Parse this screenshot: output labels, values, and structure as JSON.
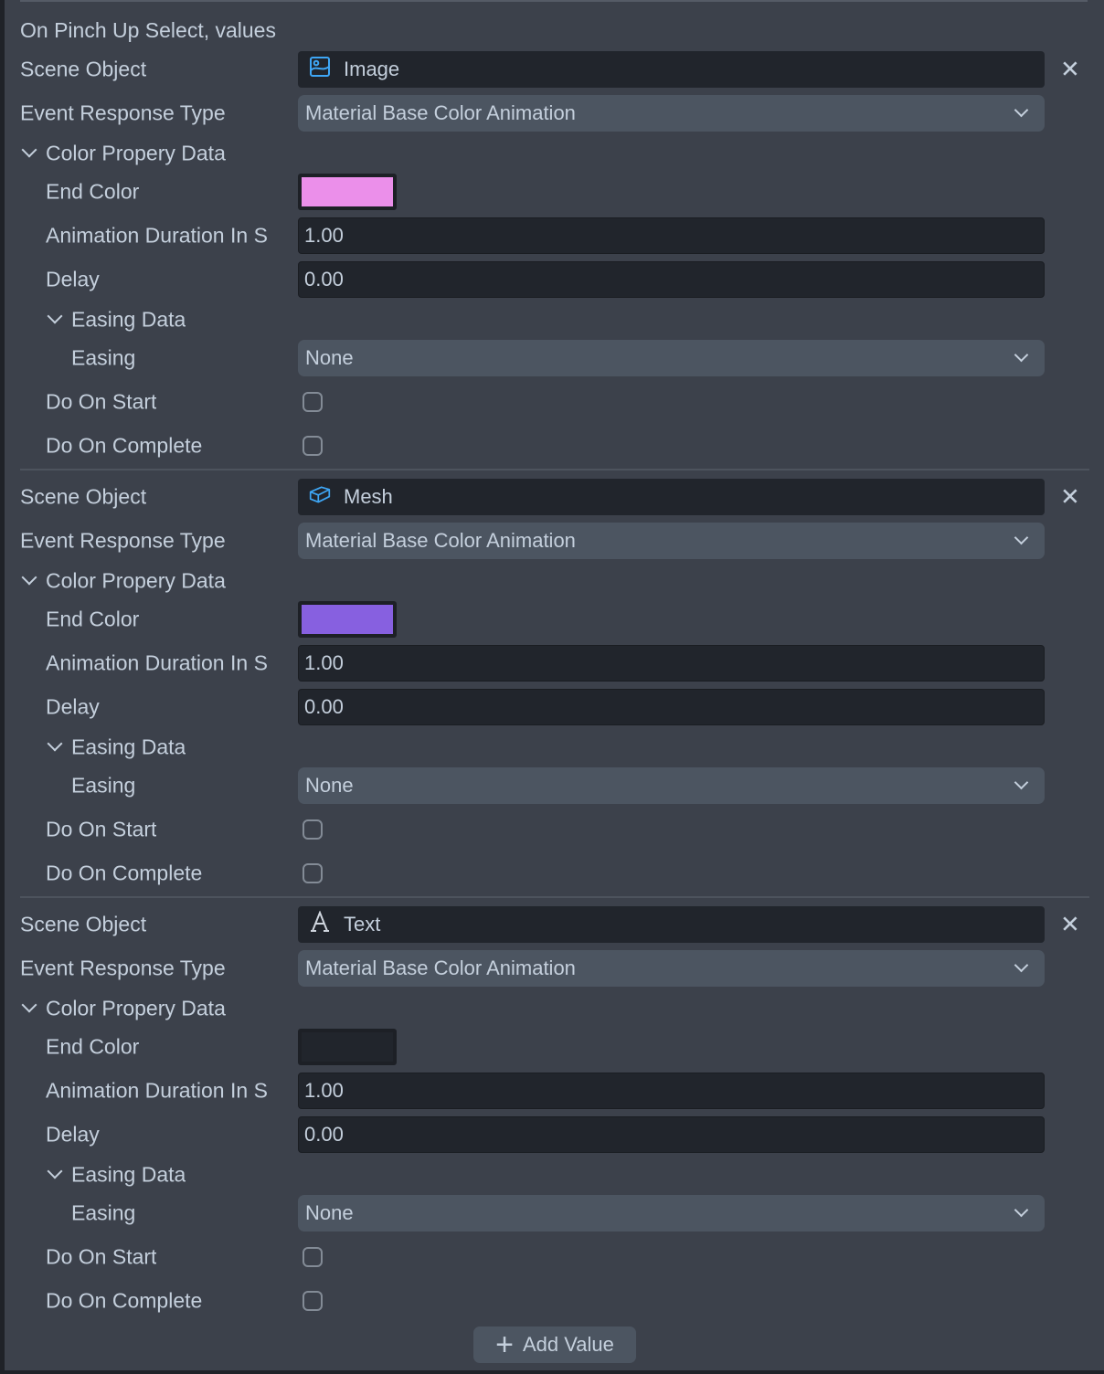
{
  "title": "On Pinch Up Select, values",
  "labels": {
    "scene_object": "Scene Object",
    "event_response_type": "Event Response Type",
    "color_property_data": "Color Propery Data",
    "end_color": "End Color",
    "animation_duration": "Animation Duration In S",
    "delay": "Delay",
    "easing_data": "Easing Data",
    "easing": "Easing",
    "do_on_start": "Do On Start",
    "do_on_complete": "Do On Complete"
  },
  "values": [
    {
      "scene_object": "Image",
      "icon": "image-icon",
      "event_response_type": "Material Base Color Animation",
      "end_color": "#eb8fea",
      "animation_duration": "1.00",
      "delay": "0.00",
      "easing": "None",
      "do_on_start": false,
      "do_on_complete": false
    },
    {
      "scene_object": "Mesh",
      "icon": "mesh-cube-icon",
      "event_response_type": "Material Base Color Animation",
      "end_color": "#8760e0",
      "animation_duration": "1.00",
      "delay": "0.00",
      "easing": "None",
      "do_on_start": false,
      "do_on_complete": false
    },
    {
      "scene_object": "Text",
      "icon": "text-icon",
      "event_response_type": "Material Base Color Animation",
      "end_color": "#21252c",
      "animation_duration": "1.00",
      "delay": "0.00",
      "easing": "None",
      "do_on_start": false,
      "do_on_complete": false
    }
  ],
  "add_value_label": "Add Value",
  "colors": {
    "background": "#3c414b",
    "input": "#21252c",
    "dropdown": "#4c5561",
    "text": "#c4cfdc",
    "icon_accent": "#3ea6f5"
  }
}
